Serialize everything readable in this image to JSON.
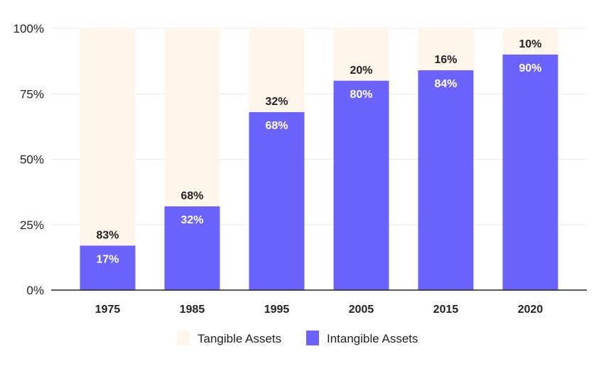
{
  "chart_data": {
    "type": "bar",
    "stacked": true,
    "title": "",
    "xlabel": "",
    "ylabel": "",
    "categories": [
      "1975",
      "1985",
      "1995",
      "2005",
      "2015",
      "2020"
    ],
    "series": [
      {
        "name": "Intangible Assets",
        "values": [
          17,
          32,
          68,
          80,
          84,
          90
        ],
        "color": "#6c63ff",
        "labels": [
          "17%",
          "32%",
          "68%",
          "80%",
          "84%",
          "90%"
        ]
      },
      {
        "name": "Tangible Assets",
        "values": [
          83,
          68,
          32,
          20,
          16,
          10
        ],
        "color": "#fef6eb",
        "labels": [
          "83%",
          "68%",
          "32%",
          "20%",
          "16%",
          "10%"
        ]
      }
    ],
    "ylim": [
      0,
      100
    ],
    "yticks": [
      0,
      25,
      50,
      75,
      100
    ],
    "ytick_labels": [
      "0%",
      "25%",
      "50%",
      "75%",
      "100%"
    ],
    "grid": true,
    "legend_position": "bottom",
    "legend": [
      {
        "label": "Tangible Assets",
        "color": "#fef6eb"
      },
      {
        "label": "Intangible Assets",
        "color": "#6c63ff"
      }
    ]
  }
}
